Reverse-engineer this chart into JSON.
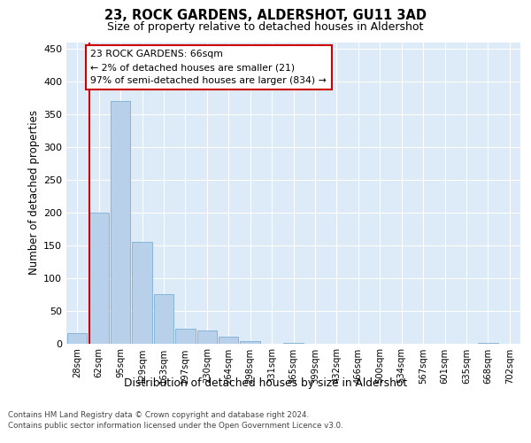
{
  "title1": "23, ROCK GARDENS, ALDERSHOT, GU11 3AD",
  "title2": "Size of property relative to detached houses in Aldershot",
  "xlabel": "Distribution of detached houses by size in Aldershot",
  "ylabel": "Number of detached properties",
  "categories": [
    "28sqm",
    "62sqm",
    "95sqm",
    "129sqm",
    "163sqm",
    "197sqm",
    "230sqm",
    "264sqm",
    "298sqm",
    "331sqm",
    "365sqm",
    "399sqm",
    "432sqm",
    "466sqm",
    "500sqm",
    "534sqm",
    "567sqm",
    "601sqm",
    "635sqm",
    "668sqm",
    "702sqm"
  ],
  "values": [
    15,
    200,
    370,
    155,
    75,
    22,
    20,
    10,
    3,
    0,
    1,
    0,
    0,
    0,
    0,
    0,
    0,
    0,
    0,
    1,
    0
  ],
  "bar_color": "#b8d0ea",
  "bar_edge_color": "#7bafd4",
  "property_line_index": 0.575,
  "annotation_line1": "23 ROCK GARDENS: 66sqm",
  "annotation_line2": "← 2% of detached houses are smaller (21)",
  "annotation_line3": "97% of semi-detached houses are larger (834) →",
  "annotation_box_facecolor": "#ffffff",
  "annotation_box_edgecolor": "#cc0000",
  "property_line_color": "#cc0000",
  "ylim": [
    0,
    460
  ],
  "yticks": [
    0,
    50,
    100,
    150,
    200,
    250,
    300,
    350,
    400,
    450
  ],
  "footer1": "Contains HM Land Registry data © Crown copyright and database right 2024.",
  "footer2": "Contains public sector information licensed under the Open Government Licence v3.0.",
  "grid_color": "#ffffff",
  "fig_bg_color": "#ffffff",
  "plot_bg_color": "#ddeaf7"
}
